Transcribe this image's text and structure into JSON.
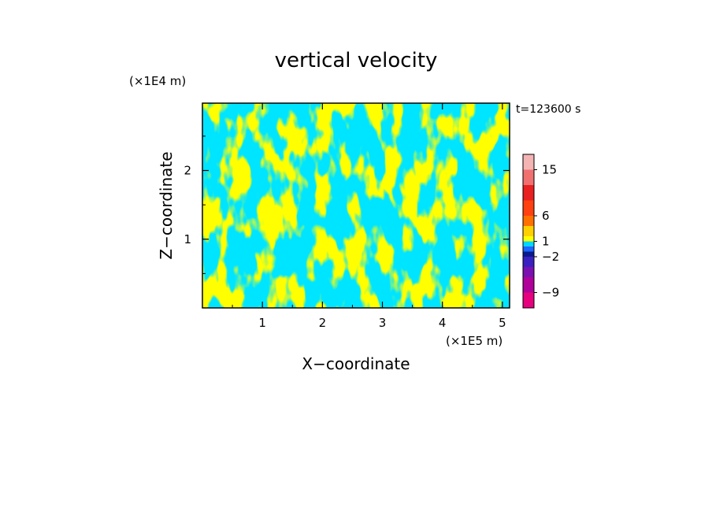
{
  "chart_data": {
    "type": "heatmap",
    "title": "vertical velocity",
    "xlabel": "X−coordinate",
    "ylabel": "Z−coordinate",
    "x_unit": "(×1E5 m)",
    "y_unit": "(×1E4 m)",
    "time_label": "t=123600 s",
    "xlim": [
      0,
      5.12
    ],
    "ylim": [
      0,
      2.98
    ],
    "x_ticks": [
      1,
      2,
      3,
      4,
      5
    ],
    "y_ticks": [
      1,
      2
    ],
    "x_tick_labels": [
      "1",
      "2",
      "3",
      "4",
      "5"
    ],
    "y_tick_labels": [
      "1",
      "2"
    ],
    "field_colors": {
      "positive": "#ffff00",
      "negative": "#00e5ff"
    },
    "colorbar": {
      "tick_labels": [
        "15",
        "6",
        "1",
        "−2",
        "−9"
      ],
      "levels": [
        -12,
        -9,
        -6,
        -4,
        -2,
        -1,
        0,
        1,
        2,
        4,
        6,
        9,
        12,
        15,
        18
      ],
      "colors": [
        "#e6007e",
        "#b0009a",
        "#7a10b0",
        "#3a20c0",
        "#0a1a8c",
        "#1e64ff",
        "#00d8ff",
        "#ffff00",
        "#ffd000",
        "#ff7000",
        "#ff4010",
        "#e82020",
        "#f07070",
        "#f4b4b4",
        "#fde4e4"
      ]
    }
  }
}
